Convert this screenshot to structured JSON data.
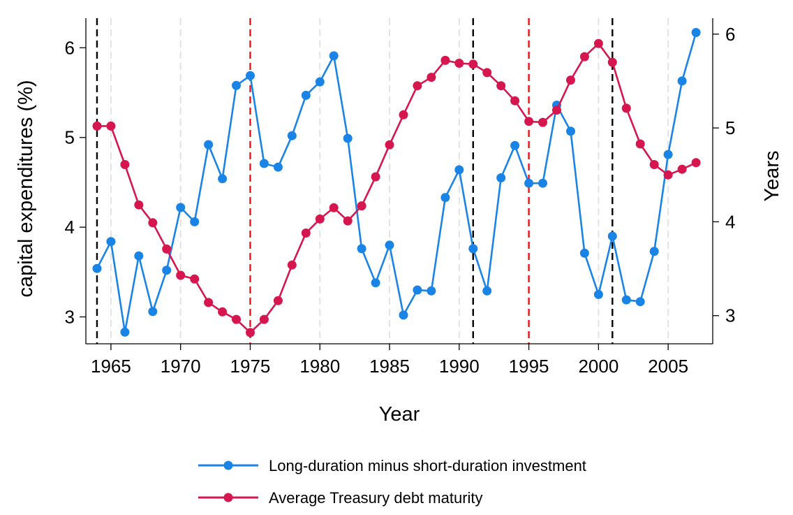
{
  "chart_data": {
    "type": "line",
    "title": "",
    "xlabel": "Year",
    "ylabel_left": "capital expenditures (%)",
    "ylabel_right": "Years",
    "xlim": [
      1963.2,
      2008.2
    ],
    "ylim_left": [
      2.7,
      6.33
    ],
    "ylim_right": [
      2.7,
      6.17
    ],
    "x_ticks": [
      1965,
      1970,
      1975,
      1980,
      1985,
      1990,
      1995,
      2000,
      2005
    ],
    "y_ticks_left": [
      3,
      4,
      5,
      6
    ],
    "y_ticks_right": [
      3,
      4,
      5,
      6
    ],
    "grid_years": [
      1965,
      1970,
      1980,
      1985,
      1990,
      2000,
      2005
    ],
    "vlines": [
      {
        "x": 1964,
        "color": "#000000"
      },
      {
        "x": 1975,
        "color": "#e8141c"
      },
      {
        "x": 1991,
        "color": "#000000"
      },
      {
        "x": 1995,
        "color": "#e8141c"
      },
      {
        "x": 2001,
        "color": "#000000"
      }
    ],
    "legend_position": "bottom",
    "x": [
      1964,
      1965,
      1966,
      1967,
      1968,
      1969,
      1970,
      1971,
      1972,
      1973,
      1974,
      1975,
      1976,
      1977,
      1978,
      1979,
      1980,
      1981,
      1982,
      1983,
      1984,
      1985,
      1986,
      1987,
      1988,
      1989,
      1990,
      1991,
      1992,
      1993,
      1994,
      1995,
      1996,
      1997,
      1998,
      1999,
      2000,
      2001,
      2002,
      2003,
      2004,
      2005,
      2006,
      2007
    ],
    "series": [
      {
        "name": "Long-duration minus short-duration investment",
        "color": "#1a84e6",
        "axis": "left",
        "values": [
          3.54,
          3.84,
          2.83,
          3.68,
          3.06,
          3.52,
          4.22,
          4.06,
          4.92,
          4.54,
          5.58,
          5.69,
          4.71,
          4.67,
          5.02,
          5.47,
          5.62,
          5.91,
          4.99,
          3.76,
          3.38,
          3.8,
          3.02,
          3.3,
          3.29,
          4.33,
          4.64,
          3.76,
          3.29,
          4.55,
          4.91,
          4.49,
          4.49,
          5.36,
          5.07,
          3.71,
          3.25,
          3.9,
          3.19,
          3.17,
          3.73,
          4.81,
          5.63,
          6.17
        ]
      },
      {
        "name": "Average Treasury debt maturity",
        "color": "#d6164f",
        "axis": "right",
        "values": [
          5.02,
          5.02,
          4.61,
          4.18,
          3.99,
          3.71,
          3.43,
          3.39,
          3.14,
          3.04,
          2.96,
          2.82,
          2.96,
          3.16,
          3.54,
          3.88,
          4.03,
          4.15,
          4.01,
          4.17,
          4.48,
          4.82,
          5.14,
          5.45,
          5.54,
          5.72,
          5.69,
          5.68,
          5.59,
          5.45,
          5.29,
          5.07,
          5.06,
          5.19,
          5.51,
          5.76,
          5.9,
          5.7,
          5.21,
          4.83,
          4.61,
          4.5,
          4.56,
          4.63
        ]
      }
    ]
  }
}
